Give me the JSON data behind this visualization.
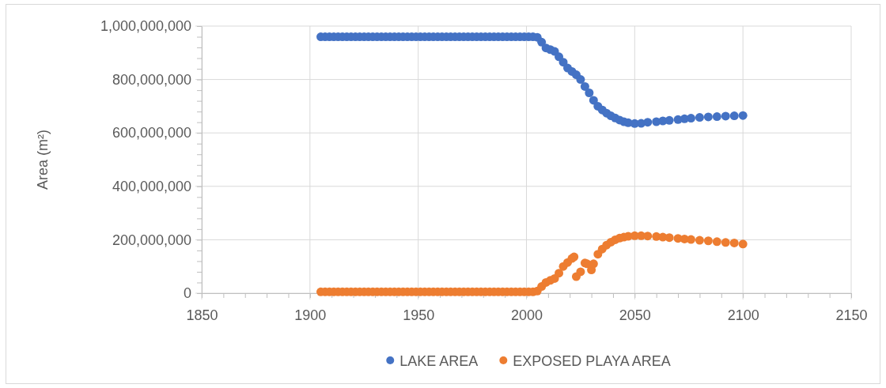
{
  "chart_data": {
    "type": "scatter",
    "ylabel": "Area (m²)",
    "xlim": [
      1850,
      2150
    ],
    "xticks": [
      1850,
      {
        "value": 1860,
        "label": null
      },
      {
        "value": 1870,
        "label": null
      },
      {
        "value": 1880,
        "label": null
      },
      {
        "value": 1890,
        "label": null
      },
      1900,
      {
        "value": 1910,
        "label": null
      },
      {
        "value": 1920,
        "label": null
      },
      {
        "value": 1930,
        "label": null
      },
      {
        "value": 1940,
        "label": null
      },
      1950,
      {
        "value": 1960,
        "label": null
      },
      {
        "value": 1970,
        "label": null
      },
      {
        "value": 1980,
        "label": null
      },
      {
        "value": 1990,
        "label": null
      },
      2000,
      {
        "value": 2010,
        "label": null
      },
      {
        "value": 2020,
        "label": null
      },
      {
        "value": 2030,
        "label": null
      },
      {
        "value": 2040,
        "label": null
      },
      2050,
      {
        "value": 2060,
        "label": null
      },
      {
        "value": 2070,
        "label": null
      },
      {
        "value": 2080,
        "label": null
      },
      {
        "value": 2090,
        "label": null
      },
      2100,
      {
        "value": 2110,
        "label": null
      },
      {
        "value": 2120,
        "label": null
      },
      {
        "value": 2130,
        "label": null
      },
      {
        "value": 2140,
        "label": null
      },
      2150
    ],
    "ylim": [
      0,
      1000000000
    ],
    "yticks": [
      0,
      {
        "value": 40000000,
        "label": null
      },
      {
        "value": 80000000,
        "label": null
      },
      {
        "value": 120000000,
        "label": null
      },
      {
        "value": 160000000,
        "label": null
      },
      {
        "value": 200000000,
        "label": "200,000,000"
      },
      {
        "value": 240000000,
        "label": null
      },
      {
        "value": 280000000,
        "label": null
      },
      {
        "value": 320000000,
        "label": null
      },
      {
        "value": 360000000,
        "label": null
      },
      {
        "value": 400000000,
        "label": "400,000,000"
      },
      {
        "value": 440000000,
        "label": null
      },
      {
        "value": 480000000,
        "label": null
      },
      {
        "value": 520000000,
        "label": null
      },
      {
        "value": 560000000,
        "label": null
      },
      {
        "value": 600000000,
        "label": "600,000,000"
      },
      {
        "value": 640000000,
        "label": null
      },
      {
        "value": 680000000,
        "label": null
      },
      {
        "value": 720000000,
        "label": null
      },
      {
        "value": 760000000,
        "label": null
      },
      {
        "value": 800000000,
        "label": "800,000,000"
      },
      {
        "value": 840000000,
        "label": null
      },
      {
        "value": 880000000,
        "label": null
      },
      {
        "value": 920000000,
        "label": null
      },
      {
        "value": 960000000,
        "label": null
      },
      {
        "value": 1000000000,
        "label": "1,000,000,000"
      }
    ],
    "grid": true,
    "legend": "bottom",
    "marker": "circle",
    "series": [
      {
        "name": "LAKE AREA",
        "color": "#4472c4",
        "x": [
          1905,
          1907,
          1909,
          1911,
          1913,
          1915,
          1917,
          1919,
          1921,
          1923,
          1925,
          1927,
          1929,
          1931,
          1933,
          1935,
          1937,
          1939,
          1941,
          1943,
          1945,
          1947,
          1949,
          1951,
          1953,
          1955,
          1957,
          1959,
          1961,
          1963,
          1965,
          1967,
          1969,
          1971,
          1973,
          1975,
          1977,
          1979,
          1981,
          1983,
          1985,
          1987,
          1989,
          1991,
          1993,
          1995,
          1997,
          1999,
          2001,
          2003,
          2005,
          2007,
          2009,
          2011,
          2013,
          2015,
          2017,
          2019,
          2021,
          2023,
          2025,
          2027,
          2029,
          2031,
          2033,
          2035,
          2037,
          2039,
          2041,
          2043,
          2045,
          2047,
          2050,
          2053,
          2056,
          2060,
          2063,
          2066,
          2070,
          2073,
          2076,
          2080,
          2084,
          2088,
          2092,
          2096,
          2100
        ],
        "values": [
          960000000,
          960000000,
          960000000,
          960000000,
          960000000,
          960000000,
          960000000,
          960000000,
          960000000,
          960000000,
          960000000,
          960000000,
          960000000,
          960000000,
          960000000,
          960000000,
          960000000,
          960000000,
          960000000,
          960000000,
          960000000,
          960000000,
          960000000,
          960000000,
          960000000,
          960000000,
          960000000,
          960000000,
          960000000,
          960000000,
          960000000,
          960000000,
          960000000,
          960000000,
          960000000,
          960000000,
          960000000,
          960000000,
          960000000,
          960000000,
          960000000,
          960000000,
          960000000,
          960000000,
          960000000,
          960000000,
          960000000,
          960000000,
          960000000,
          960000000,
          958000000,
          940000000,
          918000000,
          912000000,
          905000000,
          885000000,
          865000000,
          843000000,
          830000000,
          818000000,
          800000000,
          774000000,
          750000000,
          722000000,
          700000000,
          686000000,
          674000000,
          664000000,
          656000000,
          648000000,
          642000000,
          638000000,
          635000000,
          636000000,
          640000000,
          642000000,
          645000000,
          647000000,
          650000000,
          653000000,
          655000000,
          658000000,
          660000000,
          661000000,
          663000000,
          664000000,
          665000000
        ]
      },
      {
        "name": "EXPOSED PLAYA AREA",
        "color": "#ed7d31",
        "x": [
          1905,
          1907,
          1909,
          1911,
          1913,
          1915,
          1917,
          1919,
          1921,
          1923,
          1925,
          1927,
          1929,
          1931,
          1933,
          1935,
          1937,
          1939,
          1941,
          1943,
          1945,
          1947,
          1949,
          1951,
          1953,
          1955,
          1957,
          1959,
          1961,
          1963,
          1965,
          1967,
          1969,
          1971,
          1973,
          1975,
          1977,
          1979,
          1981,
          1983,
          1985,
          1987,
          1989,
          1991,
          1993,
          1995,
          1997,
          1999,
          2001,
          2003,
          2005,
          2007,
          2009,
          2011,
          2013,
          2015,
          2017,
          2019,
          2021,
          2022,
          2023,
          2025,
          2027,
          2028,
          2030,
          2031,
          2033,
          2035,
          2037,
          2039,
          2041,
          2043,
          2045,
          2047,
          2050,
          2053,
          2056,
          2060,
          2063,
          2066,
          2070,
          2073,
          2076,
          2080,
          2084,
          2088,
          2092,
          2096,
          2100
        ],
        "values": [
          5000000,
          5000000,
          5000000,
          5000000,
          5000000,
          5000000,
          5000000,
          5000000,
          5000000,
          5000000,
          5000000,
          5000000,
          5000000,
          5000000,
          5000000,
          5000000,
          5000000,
          5000000,
          5000000,
          5000000,
          5000000,
          5000000,
          5000000,
          5000000,
          5000000,
          5000000,
          5000000,
          5000000,
          5000000,
          5000000,
          5000000,
          5000000,
          5000000,
          5000000,
          5000000,
          5000000,
          5000000,
          5000000,
          5000000,
          5000000,
          5000000,
          5000000,
          5000000,
          5000000,
          5000000,
          5000000,
          5000000,
          5000000,
          5000000,
          5000000,
          8000000,
          25000000,
          40000000,
          48000000,
          55000000,
          75000000,
          100000000,
          115000000,
          130000000,
          136000000,
          62000000,
          80000000,
          113000000,
          110000000,
          87000000,
          110000000,
          146000000,
          165000000,
          180000000,
          191000000,
          200000000,
          206000000,
          210000000,
          213000000,
          215000000,
          215000000,
          214000000,
          212000000,
          210000000,
          208000000,
          205000000,
          203000000,
          201000000,
          198000000,
          196000000,
          193000000,
          190000000,
          188000000,
          184000000
        ]
      }
    ]
  }
}
